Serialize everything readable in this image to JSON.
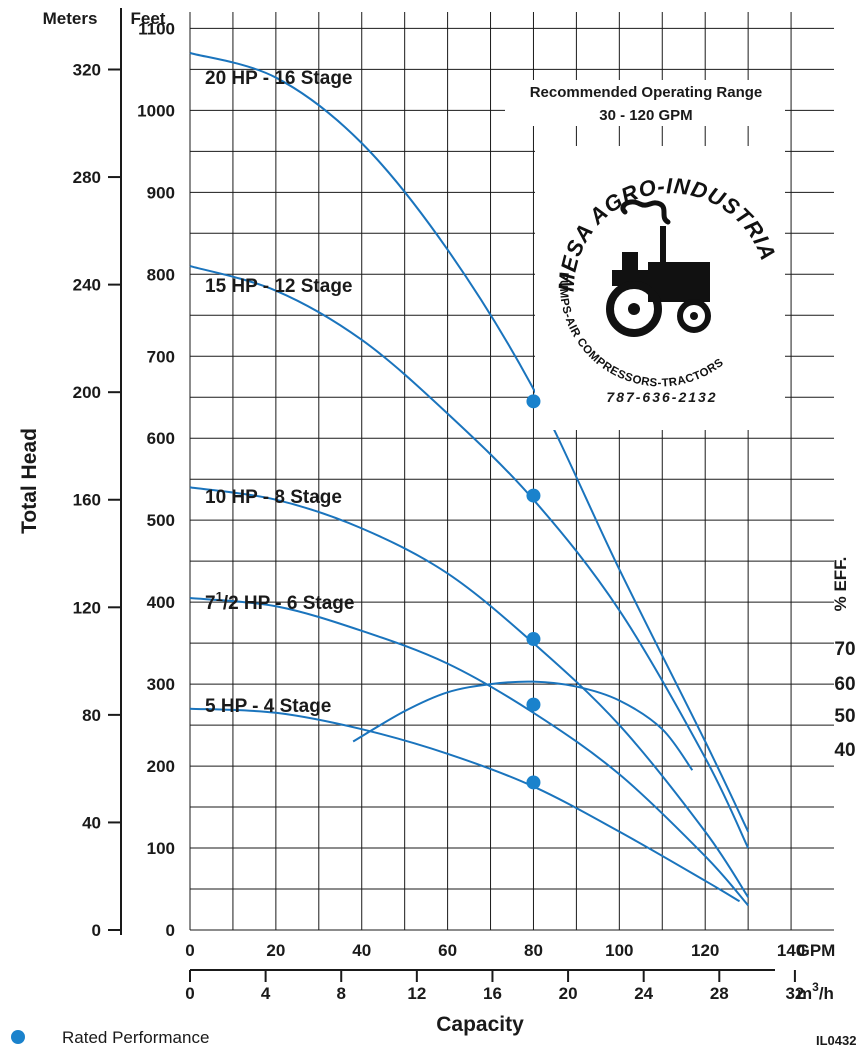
{
  "chart_data": {
    "type": "line",
    "ylabel": "Total Head",
    "xlabel": "Capacity",
    "y_units": {
      "left": "Meters",
      "right": "Feet"
    },
    "x_units": {
      "primary": "GPM",
      "secondary": "m3/h"
    },
    "feet_ticks": [
      "0",
      "100",
      "200",
      "300",
      "400",
      "500",
      "600",
      "700",
      "800",
      "900",
      "1000",
      "1100"
    ],
    "meters_ticks": [
      "0",
      "40",
      "80",
      "120",
      "160",
      "200",
      "240",
      "280",
      "320"
    ],
    "gpm_ticks": [
      "0",
      "20",
      "40",
      "60",
      "80",
      "100",
      "120",
      "140"
    ],
    "m3h_ticks": [
      "0",
      "4",
      "8",
      "12",
      "16",
      "20",
      "24",
      "28",
      "32"
    ],
    "m3h_label_main": "m",
    "m3h_label_sup": "3",
    "m3h_label_tail": "/h",
    "xlim_gpm": [
      0,
      150
    ],
    "ylim_feet": [
      0,
      1120
    ],
    "series": [
      {
        "name": "20 HP - 16 Stage",
        "x": [
          0,
          20,
          40,
          60,
          80,
          100,
          120,
          130
        ],
        "y": [
          1070,
          1040,
          960,
          830,
          660,
          440,
          230,
          120
        ]
      },
      {
        "name": "15 HP - 12 Stage",
        "x": [
          0,
          20,
          40,
          60,
          80,
          100,
          120,
          130
        ],
        "y": [
          810,
          780,
          720,
          630,
          525,
          390,
          210,
          100
        ]
      },
      {
        "name": "10 HP - 8 Stage",
        "x": [
          0,
          20,
          40,
          60,
          80,
          100,
          120,
          130
        ],
        "y": [
          540,
          525,
          490,
          435,
          350,
          250,
          120,
          40
        ]
      },
      {
        "name": "7 1/2 HP - 6 Stage",
        "x": [
          0,
          20,
          40,
          60,
          80,
          100,
          120,
          130
        ],
        "y": [
          405,
          395,
          365,
          325,
          265,
          190,
          90,
          30
        ]
      },
      {
        "name": "5 HP - 4 Stage",
        "x": [
          0,
          20,
          40,
          60,
          80,
          100,
          120,
          128
        ],
        "y": [
          270,
          265,
          245,
          215,
          175,
          120,
          60,
          35
        ]
      }
    ],
    "efficiency_curve": {
      "name": "% EFF.",
      "x": [
        38,
        50,
        60,
        70,
        80,
        90,
        100,
        110,
        117
      ],
      "y": [
        230,
        267,
        290,
        300,
        303,
        297,
        280,
        245,
        195
      ]
    },
    "efficiency_ticks": [
      "70",
      "60",
      "50",
      "40"
    ],
    "efficiency_title": "% EFF.",
    "rated_points": [
      {
        "x": 80,
        "y": 645
      },
      {
        "x": 80,
        "y": 530
      },
      {
        "x": 80,
        "y": 355
      },
      {
        "x": 80,
        "y": 275
      },
      {
        "x": 80,
        "y": 180
      }
    ],
    "curve_labels": {
      "hp20": "20 HP - 16 Stage",
      "hp15": "15 HP - 12 Stage",
      "hp10": "10 HP - 8 Stage",
      "hp7_main": "7",
      "hp7_sup": "1",
      "hp7_tail": "/2 HP - 6 Stage",
      "hp5": "5 HP - 4 Stage"
    }
  },
  "annotation": {
    "line1": "Recommended Operating Range",
    "line2": "30 - 120 GPM"
  },
  "logo": {
    "arc_text": "MESA AGRO-INDUSTRIAL",
    "inner_text": "PUMPS-AIR COMPRESSORS-TRACTORS",
    "phone": "787-636-2132"
  },
  "legend": {
    "rated_label": "Rated Performance"
  },
  "figure_code": "IL0432",
  "colors": {
    "curve": "#1a74bd",
    "point": "#1a82cc",
    "text": "#1a1a1a"
  }
}
